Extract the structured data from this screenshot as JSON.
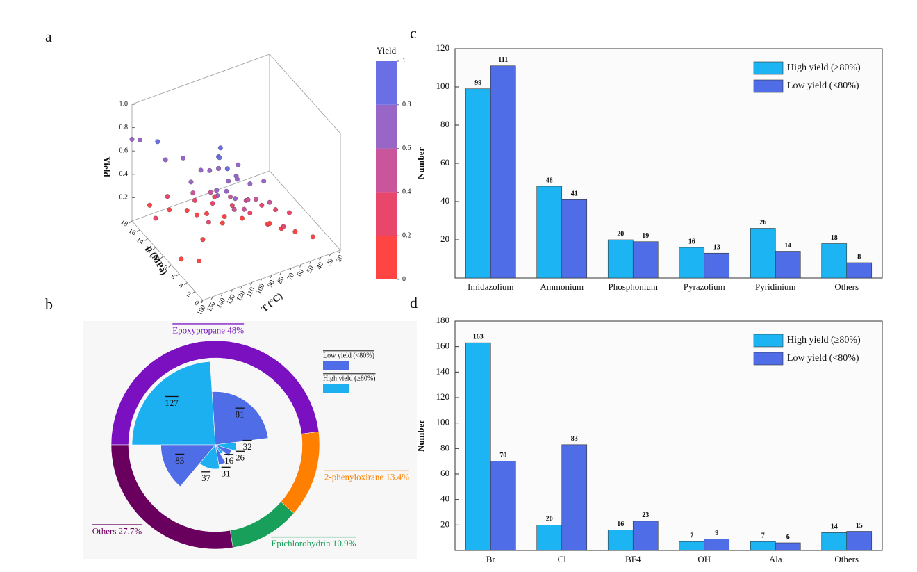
{
  "chart_data": [
    {
      "type": "scatter3d",
      "panel": "a",
      "xlabel": "T (°C)",
      "ylabel": "p (MPa)",
      "zlabel": "Yield",
      "xlim": [
        20,
        160
      ],
      "ylim": [
        0,
        18
      ],
      "zlim": [
        0,
        1
      ],
      "xticks": [
        20,
        30,
        40,
        50,
        60,
        70,
        80,
        90,
        100,
        110,
        120,
        130,
        140,
        150,
        160
      ],
      "yticks": [
        0,
        2,
        4,
        6,
        8,
        10,
        12,
        14,
        16,
        18
      ],
      "zticks": [
        0.2,
        0.4,
        0.6,
        0.8,
        {
          "value": 1,
          "label": "1.0"
        }
      ],
      "colorbar": {
        "title": "Yield",
        "ticks": [
          0,
          0.2,
          0.4,
          0.6,
          0.8,
          1
        ],
        "colors": [
          "#ff4444",
          "#e8466a",
          "#c9559a",
          "#9866c6",
          "#6b6fe6"
        ]
      },
      "x": [
        120,
        115,
        110,
        125,
        130,
        100,
        105,
        120,
        110,
        115,
        125,
        100,
        130,
        90,
        140,
        150,
        160,
        160,
        150,
        140,
        120,
        110,
        100,
        90,
        80,
        120,
        130,
        100,
        90,
        80,
        70,
        60,
        110,
        120,
        100,
        90,
        80,
        140,
        150,
        160,
        70,
        60,
        50,
        120,
        130,
        110,
        100,
        90,
        80,
        140,
        150,
        120,
        100,
        130,
        60,
        40,
        70,
        110,
        120,
        115
      ],
      "y": [
        6,
        5,
        4,
        7,
        8,
        3,
        5,
        4,
        6,
        3,
        5,
        6,
        4,
        2,
        10,
        14,
        16,
        18,
        12,
        8,
        2,
        2,
        4,
        4,
        3,
        8,
        10,
        8,
        6,
        5,
        4,
        3,
        10,
        12,
        12,
        10,
        8,
        14,
        16,
        12,
        6,
        5,
        4,
        14,
        16,
        14,
        14,
        12,
        10,
        6,
        8,
        10,
        10,
        6,
        8,
        2,
        2,
        8,
        6,
        7
      ],
      "z": [
        0.78,
        0.8,
        0.76,
        0.74,
        0.72,
        0.7,
        0.68,
        0.66,
        0.64,
        0.62,
        0.6,
        0.75,
        0.7,
        0.73,
        0.78,
        0.8,
        0.77,
        0.7,
        0.72,
        0.65,
        0.58,
        0.55,
        0.52,
        0.5,
        0.48,
        0.5,
        0.45,
        0.4,
        0.42,
        0.38,
        0.35,
        0.33,
        0.3,
        0.28,
        0.25,
        0.22,
        0.2,
        0.3,
        0.18,
        0.25,
        0.15,
        0.12,
        0.1,
        0.12,
        0.08,
        0.05,
        0.03,
        0.05,
        0.08,
        0.05,
        0.02,
        0.02,
        0.1,
        0.35,
        0.05,
        0.1,
        0.28,
        0.85,
        0.88,
        0.82
      ]
    },
    {
      "type": "rose",
      "panel": "b",
      "categories": [
        "Epoxypropane",
        "2-phenyloxirane",
        "Epichlorohydrin",
        "Others"
      ],
      "values": [
        48,
        13.4,
        10.9,
        27.7
      ],
      "value_labels": [
        "48%",
        "13.4%",
        "10.9%",
        "27.7%"
      ],
      "colors": [
        "#7a10c0",
        "#ff8000",
        "#18a05a",
        "#6a005e"
      ],
      "series": [
        {
          "name": "High yield (≥80%)",
          "color": "#1cb0f0",
          "values": [
            127,
            32,
            16,
            37
          ]
        },
        {
          "name": "Low yield (<80%)",
          "color": "#4f6de6",
          "values": [
            81,
            26,
            31,
            83
          ]
        }
      ]
    },
    {
      "type": "bar",
      "panel": "c",
      "ylabel": "Number",
      "categories": [
        "Imidazolium",
        "Ammonium",
        "Phosphonium",
        "Pyrazolium",
        "Pyridinium",
        "Others"
      ],
      "series": [
        {
          "name": "High yield (≥80%)",
          "color": "#1cb4f2",
          "values": [
            99,
            48,
            20,
            16,
            26,
            18
          ]
        },
        {
          "name": "Low yield (<80%)",
          "color": "#4f6de6",
          "values": [
            111,
            41,
            19,
            13,
            14,
            8
          ]
        }
      ],
      "ylim": [
        0,
        120
      ],
      "yticks": [
        20,
        40,
        60,
        80,
        100,
        120
      ],
      "legend": "upper right"
    },
    {
      "type": "bar",
      "panel": "d",
      "ylabel": "Number",
      "categories": [
        "Br",
        "Cl",
        "BF4",
        "OH",
        "Ala",
        "Others"
      ],
      "series": [
        {
          "name": "High yield (≥80%)",
          "color": "#1cb4f2",
          "values": [
            163,
            20,
            16,
            7,
            7,
            14
          ]
        },
        {
          "name": "Low yield (<80%)",
          "color": "#4f6de6",
          "values": [
            70,
            83,
            23,
            9,
            6,
            15
          ]
        }
      ],
      "ylim": [
        0,
        180
      ],
      "yticks": [
        20,
        40,
        60,
        80,
        100,
        120,
        140,
        160,
        180
      ],
      "legend": "upper right"
    }
  ]
}
